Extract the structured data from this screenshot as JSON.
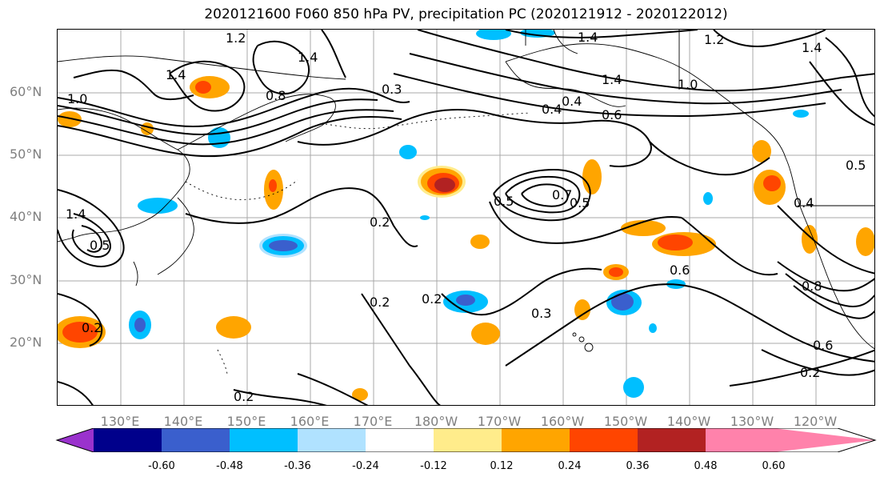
{
  "title": "2020121600 F060 850 hPa PV, precipitation PC (2020121912 - 2020122012)",
  "map": {
    "lat_labels": [
      "60°N",
      "50°N",
      "40°N",
      "30°N",
      "20°N"
    ],
    "lon_labels": [
      "130°E",
      "140°E",
      "150°E",
      "160°E",
      "170°E",
      "180°W",
      "170°W",
      "160°W",
      "150°W",
      "140°W",
      "130°W",
      "120°W"
    ],
    "contour_labels": [
      "1.2",
      "1.4",
      "1.4",
      "1.2",
      "1.4",
      "1.4",
      "1.0",
      "0.8",
      "0.3",
      "1.4",
      "1.0",
      "0.6",
      "0.4",
      "0.4",
      "0.5",
      "0.7",
      "0.5",
      "0.2",
      "0.4",
      "0.5",
      "0.2",
      "0.2",
      "0.3",
      "0.6",
      "0.8",
      "0.6",
      "0.2",
      "0.2",
      "0.2",
      "0.5",
      "1.4"
    ],
    "colors": {
      "land_line": "#000000",
      "gridline": "#a8a8a8"
    }
  },
  "colorbar": {
    "tick_labels": [
      "-0.60",
      "-0.48",
      "-0.36",
      "-0.24",
      "-0.12",
      "0.12",
      "0.24",
      "0.36",
      "0.48",
      "0.60"
    ],
    "colors": [
      "#9a32cd",
      "#00008b",
      "#3a5fcd",
      "#00bfff",
      "#b0e2ff",
      "#ffffff",
      "#ffec8b",
      "#ffa500",
      "#ff4500",
      "#b22222",
      "#ff82ab"
    ]
  }
}
